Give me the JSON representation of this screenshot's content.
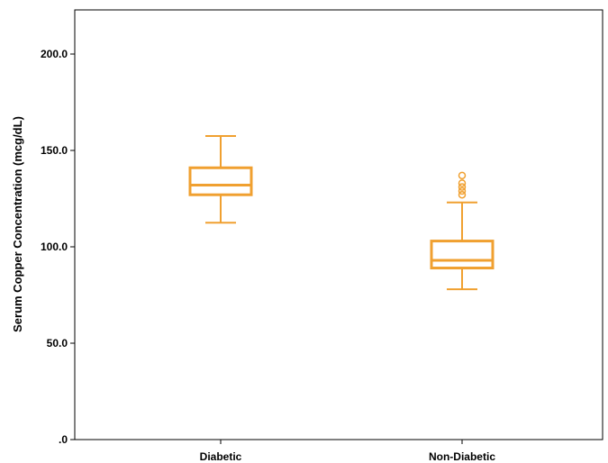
{
  "chart_data": {
    "type": "boxplot",
    "title": "",
    "xlabel": "",
    "ylabel": "Serum Copper Concentration (mcg/dL)",
    "ylim": [
      0,
      222
    ],
    "y_ticks": [
      {
        "value": 0,
        "label": ".0"
      },
      {
        "value": 50,
        "label": "50.0"
      },
      {
        "value": 100,
        "label": "100.0"
      },
      {
        "value": 150,
        "label": "150.0"
      },
      {
        "value": 200,
        "label": "200.0"
      }
    ],
    "grid": false,
    "box_color": "#F0A030",
    "categories": [
      "Diabetic",
      "Non-Diabetic"
    ],
    "boxes": [
      {
        "category": "Diabetic",
        "whisker_low": 112.5,
        "q1": 127,
        "median": 132,
        "q3": 141,
        "whisker_high": 157.5,
        "outliers": []
      },
      {
        "category": "Non-Diabetic",
        "whisker_low": 78,
        "q1": 89,
        "median": 93,
        "q3": 103,
        "whisker_high": 123,
        "outliers": [
          127,
          129,
          131,
          133,
          137
        ]
      }
    ]
  }
}
